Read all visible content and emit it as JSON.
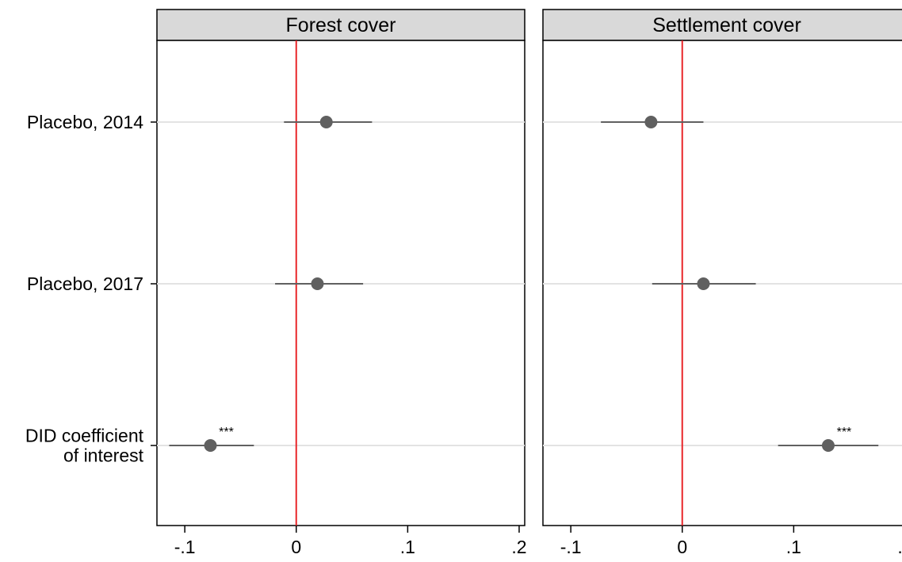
{
  "chart_data": {
    "type": "coefficient_plot",
    "categories": [
      "Placebo, 2014",
      "Placebo, 2017",
      "DID coefficient of interest"
    ],
    "category_label_lines": [
      [
        "Placebo, 2014"
      ],
      [
        "Placebo, 2017"
      ],
      [
        "DID coefficient",
        "of interest"
      ]
    ],
    "xticks": [
      -0.1,
      0,
      0.1,
      0.2
    ],
    "xtick_labels": [
      "-.1",
      "0",
      ".1",
      ".2"
    ],
    "xlim": [
      -0.125,
      0.205
    ],
    "reference_line": {
      "x": 0,
      "color": "#e8262a"
    },
    "marker_color": "#606060",
    "grid": "horizontal",
    "panels": [
      {
        "title": "Forest cover",
        "points": [
          {
            "category": "Placebo, 2014",
            "estimate": 0.027,
            "ci_low": -0.011,
            "ci_high": 0.068,
            "stars": ""
          },
          {
            "category": "Placebo, 2017",
            "estimate": 0.019,
            "ci_low": -0.019,
            "ci_high": 0.06,
            "stars": ""
          },
          {
            "category": "DID coefficient of interest",
            "estimate": -0.077,
            "ci_low": -0.114,
            "ci_high": -0.038,
            "stars": "***"
          }
        ]
      },
      {
        "title": "Settlement cover",
        "points": [
          {
            "category": "Placebo, 2014",
            "estimate": -0.028,
            "ci_low": -0.073,
            "ci_high": 0.019,
            "stars": ""
          },
          {
            "category": "Placebo, 2017",
            "estimate": 0.019,
            "ci_low": -0.027,
            "ci_high": 0.066,
            "stars": ""
          },
          {
            "category": "DID coefficient of interest",
            "estimate": 0.131,
            "ci_low": 0.086,
            "ci_high": 0.176,
            "stars": "***"
          }
        ]
      }
    ]
  }
}
